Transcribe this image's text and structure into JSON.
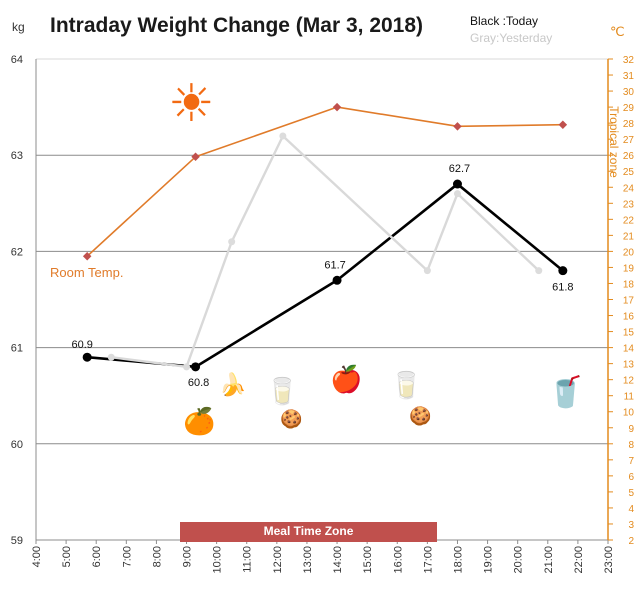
{
  "title": "Intraday Weight Change (Mar 3, 2018)",
  "left_unit": "kg",
  "right_unit": "℃",
  "legend": {
    "today": "Black :Today",
    "yesterday": "Gray:Yesterday"
  },
  "annotations": {
    "room_temp": "Room Temp.",
    "tropical_zone": "Tropical zone",
    "meal_zone": "Meal Time Zone"
  },
  "colors": {
    "today": "#000000",
    "yesterday": "#d9d9d9",
    "temperature": "#e07b2a",
    "temp_marker": "#c0504d",
    "right_axis": "#e38b1e",
    "meal_band": "#c0504d"
  },
  "icons": [
    {
      "name": "sun-icon",
      "glyph": "☀"
    },
    {
      "name": "orange-icon",
      "glyph": "🍊"
    },
    {
      "name": "banana-icon",
      "glyph": "🍌"
    },
    {
      "name": "water-glass-icon",
      "glyph": "🥛"
    },
    {
      "name": "cookie-icon",
      "glyph": "🍪"
    },
    {
      "name": "apple-icon",
      "glyph": "🍎"
    },
    {
      "name": "water-glass-icon-2",
      "glyph": "🥛"
    },
    {
      "name": "cookie-icon-2",
      "glyph": "🍪"
    },
    {
      "name": "cup-icon",
      "glyph": "🥤"
    }
  ],
  "chart_data": {
    "type": "line",
    "x_labels": [
      "4:00",
      "5:00",
      "6:00",
      "7:00",
      "8:00",
      "9:00",
      "10:00",
      "11:00",
      "12:00",
      "13:00",
      "14:00",
      "15:00",
      "16:00",
      "17:00",
      "18:00",
      "19:00",
      "20:00",
      "21:00",
      "22:00",
      "23:00"
    ],
    "xlim": [
      4,
      23
    ],
    "left_axis": {
      "label": "kg",
      "ylim": [
        59,
        64
      ],
      "ticks": [
        59,
        60,
        61,
        62,
        63,
        64
      ]
    },
    "right_axis": {
      "label": "℃",
      "ylim": [
        2,
        32
      ],
      "ticks": [
        2,
        3,
        4,
        5,
        6,
        7,
        8,
        9,
        10,
        11,
        12,
        13,
        14,
        15,
        16,
        17,
        18,
        19,
        20,
        21,
        22,
        23,
        24,
        25,
        26,
        27,
        28,
        29,
        30,
        31,
        32
      ]
    },
    "grid": true,
    "meal_time_zone": {
      "label": "Meal Time Zone",
      "x": [
        9,
        18
      ]
    },
    "series": [
      {
        "name": "Today",
        "axis": "left",
        "x": [
          5.7,
          9.3,
          14.0,
          18.0,
          21.5
        ],
        "y": [
          60.9,
          60.8,
          61.7,
          62.7,
          61.8
        ],
        "labels": [
          "60.9",
          "60.8",
          "61.7",
          "62.7",
          "61.8"
        ]
      },
      {
        "name": "Yesterday",
        "axis": "left",
        "x": [
          6.5,
          9.0,
          10.5,
          12.2,
          17.0,
          18.0,
          20.7
        ],
        "y": [
          60.9,
          60.8,
          62.1,
          63.2,
          61.8,
          62.6,
          61.8
        ]
      },
      {
        "name": "Room Temp.",
        "axis": "right",
        "x": [
          5.7,
          9.3,
          14.0,
          18.0,
          21.5
        ],
        "y": [
          19.7,
          25.9,
          29.0,
          27.8,
          27.9
        ]
      }
    ]
  }
}
